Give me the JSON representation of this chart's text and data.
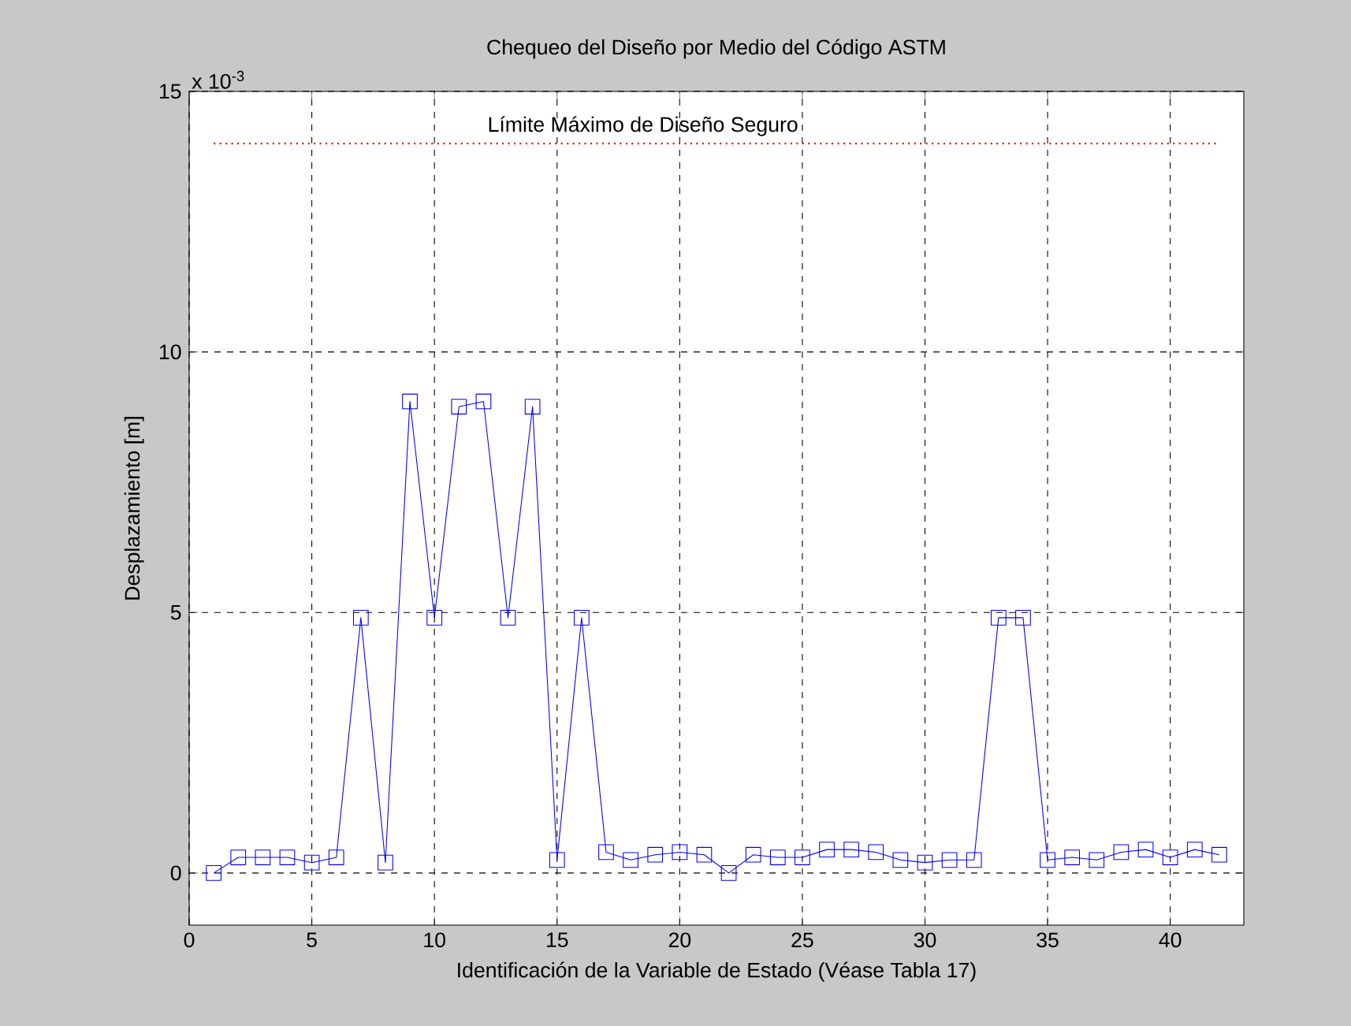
{
  "chart_data": {
    "type": "line",
    "title": "Chequeo del Diseño por Medio del Código ASTM",
    "xlabel": "Identificación de la Variable de Estado (Véase Tabla 17)",
    "ylabel": "Desplazamiento [m]",
    "annotations": [
      "x 10$^{-3}$"
    ],
    "x": [
      1,
      2,
      3,
      4,
      5,
      6,
      7,
      8,
      9,
      10,
      11,
      12,
      13,
      14,
      15,
      16,
      17,
      18,
      19,
      20,
      21,
      22,
      23,
      24,
      25,
      26,
      27,
      28,
      29,
      30,
      31,
      32,
      33,
      34,
      35,
      36,
      37,
      38,
      39,
      40,
      41,
      42
    ],
    "series": [
      {
        "color": "#0000ff",
        "marker": "square",
        "line_style": "solid",
        "values": [
          0,
          0.3,
          0.3,
          0.3,
          0.2,
          0.3,
          4.9,
          0.2,
          9.05,
          4.9,
          8.95,
          9.05,
          4.9,
          8.95,
          0.25,
          4.9,
          0.4,
          0.25,
          0.35,
          0.4,
          0.35,
          0,
          0.35,
          0.3,
          0.3,
          0.45,
          0.45,
          0.4,
          0.25,
          0.2,
          0.25,
          0.25,
          4.9,
          4.9,
          0.25,
          0.3,
          0.25,
          0.4,
          0.45,
          0.3,
          0.45,
          0.35
        ]
      }
    ],
    "ref_lines": [
      {
        "axis": "y",
        "value": 14,
        "label": "Límite Máximo de Diseño Seguro",
        "color": "#ff0000",
        "line_style": "dotted"
      }
    ],
    "xlim": [
      0,
      43
    ],
    "ylim": [
      -1,
      15
    ],
    "xticks": [
      0,
      5,
      10,
      15,
      20,
      25,
      30,
      35,
      40
    ],
    "yticks": [
      0,
      5,
      10,
      15
    ],
    "grid": true
  }
}
